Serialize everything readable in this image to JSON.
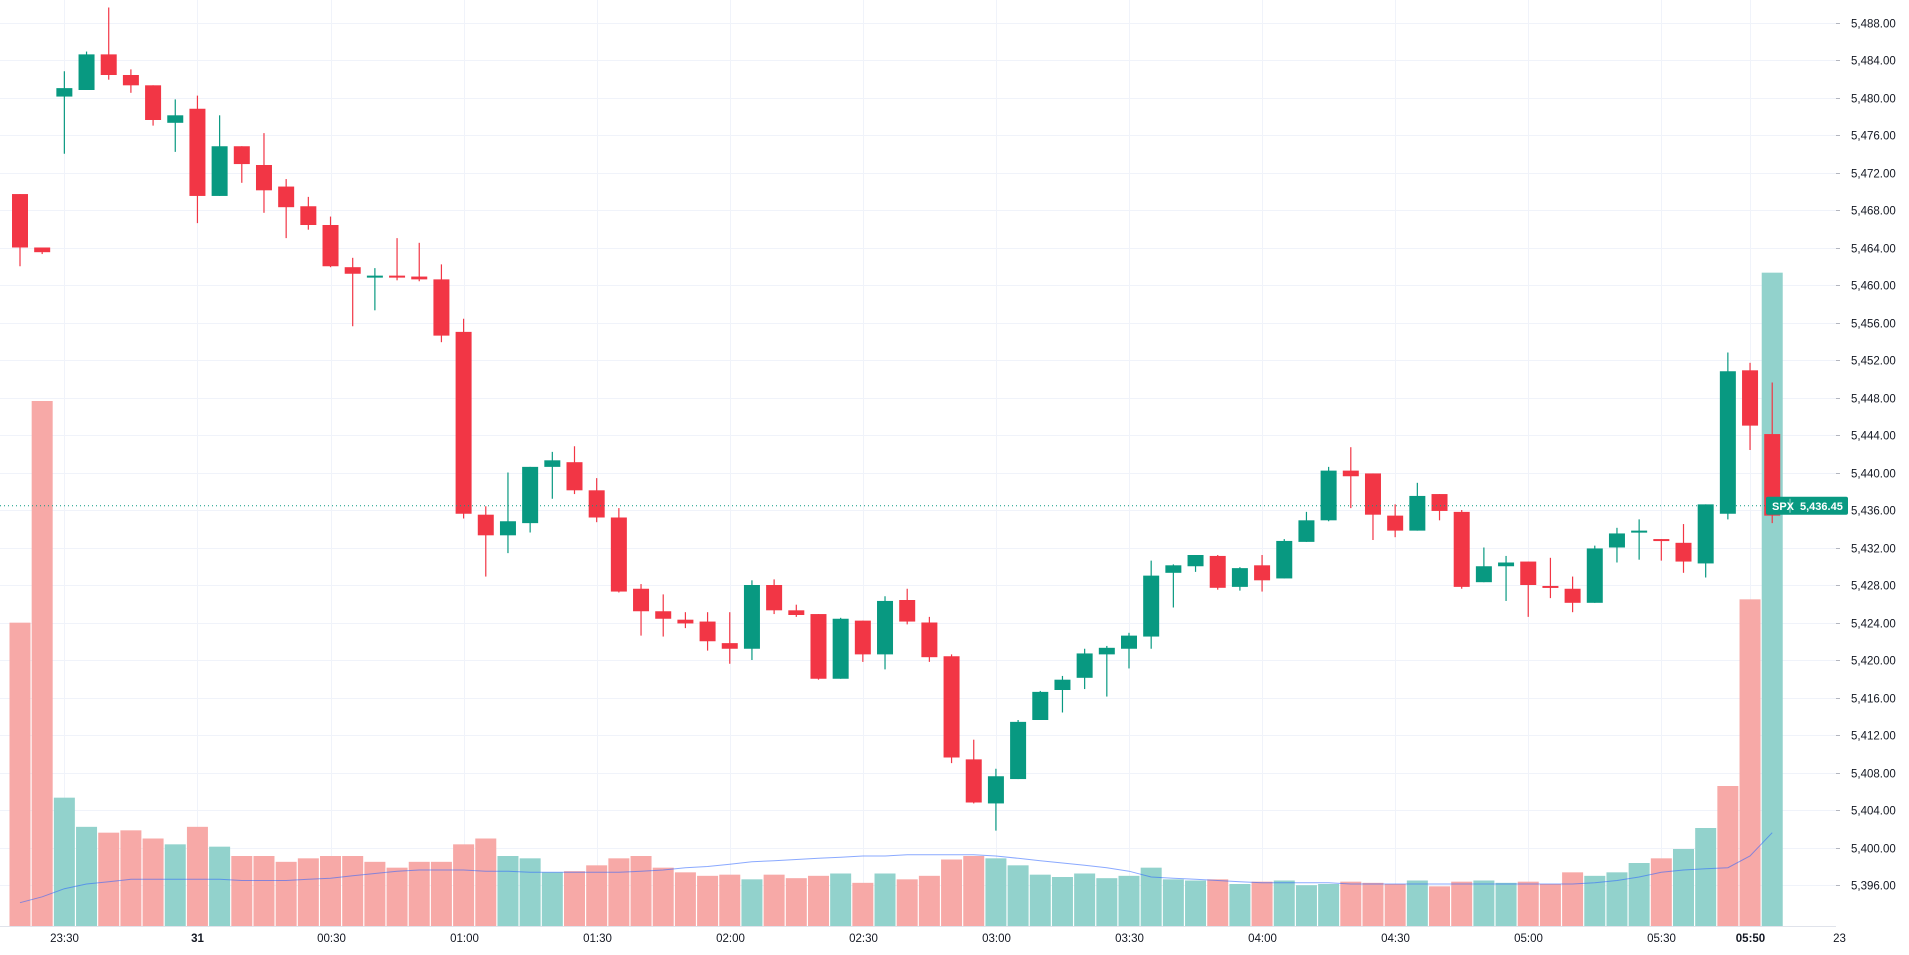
{
  "chart_data": {
    "type": "candlestick",
    "symbol": "SPX",
    "last_price": 5436.45,
    "last_price_label": "5,436.45",
    "colors": {
      "up": "#089981",
      "down": "#f23645",
      "up_volume": "#92d2cc",
      "down_volume": "#f7a9a7",
      "volume_ma": "#2962ff",
      "grid": "#f0f3fa",
      "price_line": "#089981",
      "axis_text": "#131722",
      "background": "#ffffff"
    },
    "y_range": [
      5393,
      5490
    ],
    "y_ticks": [
      5396,
      5400,
      5404,
      5408,
      5412,
      5416,
      5420,
      5424,
      5428,
      5432,
      5436,
      5440,
      5444,
      5448,
      5452,
      5456,
      5460,
      5464,
      5468,
      5472,
      5476,
      5480,
      5484,
      5488
    ],
    "y_tick_labels": [
      "5,396.00",
      "5,400.00",
      "5,404.00",
      "5,408.00",
      "5,412.00",
      "5,416.00",
      "5,420.00",
      "5,424.00",
      "5,428.00",
      "5,432.00",
      "5,436.00",
      "5,440.00",
      "5,444.00",
      "5,448.00",
      "5,452.00",
      "5,456.00",
      "5,460.00",
      "5,464.00",
      "5,468.00",
      "5,472.00",
      "5,476.00",
      "5,480.00",
      "5,484.00",
      "5,488.00"
    ],
    "x_ticks": [
      {
        "index": 2,
        "label": "23:30",
        "bold": false
      },
      {
        "index": 8,
        "label": "31",
        "bold": true
      },
      {
        "index": 14,
        "label": "00:30",
        "bold": false
      },
      {
        "index": 20,
        "label": "01:00",
        "bold": false
      },
      {
        "index": 26,
        "label": "01:30",
        "bold": false
      },
      {
        "index": 32,
        "label": "02:00",
        "bold": false
      },
      {
        "index": 38,
        "label": "02:30",
        "bold": false
      },
      {
        "index": 44,
        "label": "03:00",
        "bold": false
      },
      {
        "index": 50,
        "label": "03:30",
        "bold": false
      },
      {
        "index": 56,
        "label": "04:00",
        "bold": false
      },
      {
        "index": 62,
        "label": "04:30",
        "bold": false
      },
      {
        "index": 68,
        "label": "05:00",
        "bold": false
      },
      {
        "index": 74,
        "label": "05:30",
        "bold": false
      },
      {
        "index": 78,
        "label": "05:50",
        "bold": true
      },
      {
        "index": 82,
        "label": "23",
        "bold": false
      }
    ],
    "bar_count": 83,
    "candles": [
      {
        "o": 5469.7,
        "h": 5469.7,
        "l": 5462.0,
        "c": 5464.0
      },
      {
        "o": 5464.0,
        "h": 5464.0,
        "l": 5463.3,
        "c": 5463.5
      },
      {
        "o": 5480.1,
        "h": 5482.8,
        "l": 5474.0,
        "c": 5481.0
      },
      {
        "o": 5480.8,
        "h": 5484.9,
        "l": 5480.8,
        "c": 5484.6
      },
      {
        "o": 5484.6,
        "h": 5489.6,
        "l": 5481.9,
        "c": 5482.4
      },
      {
        "o": 5482.4,
        "h": 5483.0,
        "l": 5480.5,
        "c": 5481.3
      },
      {
        "o": 5481.3,
        "h": 5481.3,
        "l": 5477.0,
        "c": 5477.6
      },
      {
        "o": 5477.3,
        "h": 5479.8,
        "l": 5474.2,
        "c": 5478.1
      },
      {
        "o": 5478.8,
        "h": 5480.2,
        "l": 5466.6,
        "c": 5469.5
      },
      {
        "o": 5469.5,
        "h": 5478.1,
        "l": 5469.5,
        "c": 5474.8
      },
      {
        "o": 5474.8,
        "h": 5474.8,
        "l": 5470.9,
        "c": 5472.9
      },
      {
        "o": 5472.8,
        "h": 5476.2,
        "l": 5467.7,
        "c": 5470.1
      },
      {
        "o": 5470.5,
        "h": 5471.3,
        "l": 5465.0,
        "c": 5468.3
      },
      {
        "o": 5468.4,
        "h": 5469.4,
        "l": 5465.9,
        "c": 5466.4
      },
      {
        "o": 5466.4,
        "h": 5467.3,
        "l": 5461.9,
        "c": 5462.0
      },
      {
        "o": 5461.9,
        "h": 5462.9,
        "l": 5455.6,
        "c": 5461.2
      },
      {
        "o": 5461.0,
        "h": 5461.8,
        "l": 5457.3,
        "c": 5461.0
      },
      {
        "o": 5461.0,
        "h": 5465.0,
        "l": 5460.5,
        "c": 5460.8
      },
      {
        "o": 5460.9,
        "h": 5464.5,
        "l": 5460.4,
        "c": 5460.6
      },
      {
        "o": 5460.6,
        "h": 5462.2,
        "l": 5453.9,
        "c": 5454.6
      },
      {
        "o": 5455.0,
        "h": 5456.4,
        "l": 5435.1,
        "c": 5435.6
      },
      {
        "o": 5435.5,
        "h": 5436.4,
        "l": 5428.9,
        "c": 5433.3
      },
      {
        "o": 5433.3,
        "h": 5440.0,
        "l": 5431.4,
        "c": 5434.8
      },
      {
        "o": 5434.6,
        "h": 5440.6,
        "l": 5433.6,
        "c": 5440.6
      },
      {
        "o": 5440.6,
        "h": 5442.2,
        "l": 5437.2,
        "c": 5441.3
      },
      {
        "o": 5441.1,
        "h": 5442.8,
        "l": 5437.7,
        "c": 5438.1
      },
      {
        "o": 5438.1,
        "h": 5439.4,
        "l": 5434.7,
        "c": 5435.2
      },
      {
        "o": 5435.2,
        "h": 5436.2,
        "l": 5427.2,
        "c": 5427.3
      },
      {
        "o": 5427.6,
        "h": 5428.1,
        "l": 5422.6,
        "c": 5425.2
      },
      {
        "o": 5425.2,
        "h": 5427.0,
        "l": 5422.5,
        "c": 5424.4
      },
      {
        "o": 5424.3,
        "h": 5425.1,
        "l": 5423.4,
        "c": 5423.9
      },
      {
        "o": 5424.1,
        "h": 5425.1,
        "l": 5421.0,
        "c": 5422.0
      },
      {
        "o": 5421.8,
        "h": 5425.1,
        "l": 5419.6,
        "c": 5421.2
      },
      {
        "o": 5421.2,
        "h": 5428.5,
        "l": 5420.0,
        "c": 5428.0
      },
      {
        "o": 5428.0,
        "h": 5428.6,
        "l": 5424.9,
        "c": 5425.3
      },
      {
        "o": 5425.3,
        "h": 5425.9,
        "l": 5424.6,
        "c": 5424.8
      },
      {
        "o": 5424.9,
        "h": 5424.9,
        "l": 5417.9,
        "c": 5418.0
      },
      {
        "o": 5418.0,
        "h": 5424.5,
        "l": 5418.0,
        "c": 5424.4
      },
      {
        "o": 5424.2,
        "h": 5424.2,
        "l": 5419.8,
        "c": 5420.6
      },
      {
        "o": 5420.6,
        "h": 5426.8,
        "l": 5419.0,
        "c": 5426.3
      },
      {
        "o": 5426.4,
        "h": 5427.6,
        "l": 5423.8,
        "c": 5424.1
      },
      {
        "o": 5424.0,
        "h": 5424.6,
        "l": 5419.8,
        "c": 5420.3
      },
      {
        "o": 5420.4,
        "h": 5420.6,
        "l": 5409.0,
        "c": 5409.6
      },
      {
        "o": 5409.4,
        "h": 5411.5,
        "l": 5404.7,
        "c": 5404.8
      },
      {
        "o": 5404.7,
        "h": 5408.4,
        "l": 5401.8,
        "c": 5407.6
      },
      {
        "o": 5407.3,
        "h": 5413.6,
        "l": 5407.3,
        "c": 5413.4
      },
      {
        "o": 5413.6,
        "h": 5416.7,
        "l": 5413.6,
        "c": 5416.6
      },
      {
        "o": 5416.8,
        "h": 5418.3,
        "l": 5414.4,
        "c": 5417.9
      },
      {
        "o": 5418.1,
        "h": 5421.2,
        "l": 5416.9,
        "c": 5420.7
      },
      {
        "o": 5420.6,
        "h": 5421.5,
        "l": 5416.1,
        "c": 5421.3
      },
      {
        "o": 5421.2,
        "h": 5422.9,
        "l": 5419.1,
        "c": 5422.6
      },
      {
        "o": 5422.5,
        "h": 5430.6,
        "l": 5421.2,
        "c": 5429.0
      },
      {
        "o": 5429.3,
        "h": 5430.2,
        "l": 5425.6,
        "c": 5430.1
      },
      {
        "o": 5430.0,
        "h": 5431.2,
        "l": 5429.4,
        "c": 5431.2
      },
      {
        "o": 5431.1,
        "h": 5431.2,
        "l": 5427.5,
        "c": 5427.7
      },
      {
        "o": 5427.8,
        "h": 5429.9,
        "l": 5427.4,
        "c": 5429.8
      },
      {
        "o": 5430.1,
        "h": 5431.2,
        "l": 5427.3,
        "c": 5428.5
      },
      {
        "o": 5428.7,
        "h": 5432.9,
        "l": 5428.7,
        "c": 5432.7
      },
      {
        "o": 5432.6,
        "h": 5435.8,
        "l": 5432.6,
        "c": 5434.9
      },
      {
        "o": 5434.9,
        "h": 5440.6,
        "l": 5434.8,
        "c": 5440.2
      },
      {
        "o": 5440.2,
        "h": 5442.7,
        "l": 5436.2,
        "c": 5439.6
      },
      {
        "o": 5439.9,
        "h": 5439.9,
        "l": 5432.8,
        "c": 5435.5
      },
      {
        "o": 5435.4,
        "h": 5436.6,
        "l": 5433.1,
        "c": 5433.8
      },
      {
        "o": 5433.8,
        "h": 5438.9,
        "l": 5433.8,
        "c": 5437.5
      },
      {
        "o": 5437.7,
        "h": 5437.7,
        "l": 5434.9,
        "c": 5435.9
      },
      {
        "o": 5435.8,
        "h": 5436.0,
        "l": 5427.6,
        "c": 5427.8
      },
      {
        "o": 5428.3,
        "h": 5432.0,
        "l": 5428.3,
        "c": 5430.0
      },
      {
        "o": 5430.0,
        "h": 5431.1,
        "l": 5426.3,
        "c": 5430.4
      },
      {
        "o": 5430.5,
        "h": 5430.5,
        "l": 5424.6,
        "c": 5428.0
      },
      {
        "o": 5427.9,
        "h": 5430.9,
        "l": 5426.6,
        "c": 5427.8
      },
      {
        "o": 5427.6,
        "h": 5428.9,
        "l": 5425.1,
        "c": 5426.1
      },
      {
        "o": 5426.1,
        "h": 5432.2,
        "l": 5426.1,
        "c": 5431.9
      },
      {
        "o": 5432.0,
        "h": 5434.1,
        "l": 5430.4,
        "c": 5433.5
      },
      {
        "o": 5433.6,
        "h": 5435.0,
        "l": 5430.7,
        "c": 5433.8
      },
      {
        "o": 5432.9,
        "h": 5432.9,
        "l": 5430.6,
        "c": 5432.8
      },
      {
        "o": 5432.5,
        "h": 5434.5,
        "l": 5429.3,
        "c": 5430.5
      },
      {
        "o": 5430.3,
        "h": 5436.6,
        "l": 5428.8,
        "c": 5436.6
      },
      {
        "o": 5435.6,
        "h": 5452.8,
        "l": 5435.0,
        "c": 5450.8
      },
      {
        "o": 5450.9,
        "h": 5451.7,
        "l": 5442.4,
        "c": 5445.0
      },
      {
        "o": 5444.1,
        "h": 5449.6,
        "l": 5434.6,
        "c": 5435.4
      }
    ],
    "volumes": [
      {
        "v": 0.26,
        "up": false
      },
      {
        "v": 0.45,
        "up": false
      },
      {
        "v": 0.11,
        "up": true
      },
      {
        "v": 0.085,
        "up": true
      },
      {
        "v": 0.08,
        "up": false
      },
      {
        "v": 0.082,
        "up": false
      },
      {
        "v": 0.075,
        "up": false
      },
      {
        "v": 0.07,
        "up": true
      },
      {
        "v": 0.085,
        "up": false
      },
      {
        "v": 0.068,
        "up": true
      },
      {
        "v": 0.06,
        "up": false
      },
      {
        "v": 0.06,
        "up": false
      },
      {
        "v": 0.055,
        "up": false
      },
      {
        "v": 0.058,
        "up": false
      },
      {
        "v": 0.06,
        "up": false
      },
      {
        "v": 0.06,
        "up": false
      },
      {
        "v": 0.055,
        "up": false
      },
      {
        "v": 0.05,
        "up": false
      },
      {
        "v": 0.055,
        "up": false
      },
      {
        "v": 0.055,
        "up": false
      },
      {
        "v": 0.07,
        "up": false
      },
      {
        "v": 0.075,
        "up": false
      },
      {
        "v": 0.06,
        "up": true
      },
      {
        "v": 0.058,
        "up": true
      },
      {
        "v": 0.046,
        "up": true
      },
      {
        "v": 0.047,
        "up": false
      },
      {
        "v": 0.052,
        "up": false
      },
      {
        "v": 0.058,
        "up": false
      },
      {
        "v": 0.06,
        "up": false
      },
      {
        "v": 0.05,
        "up": false
      },
      {
        "v": 0.046,
        "up": false
      },
      {
        "v": 0.043,
        "up": false
      },
      {
        "v": 0.044,
        "up": false
      },
      {
        "v": 0.04,
        "up": true
      },
      {
        "v": 0.044,
        "up": false
      },
      {
        "v": 0.041,
        "up": false
      },
      {
        "v": 0.043,
        "up": false
      },
      {
        "v": 0.045,
        "up": true
      },
      {
        "v": 0.037,
        "up": false
      },
      {
        "v": 0.045,
        "up": true
      },
      {
        "v": 0.04,
        "up": false
      },
      {
        "v": 0.043,
        "up": false
      },
      {
        "v": 0.057,
        "up": false
      },
      {
        "v": 0.06,
        "up": false
      },
      {
        "v": 0.058,
        "up": true
      },
      {
        "v": 0.052,
        "up": true
      },
      {
        "v": 0.044,
        "up": true
      },
      {
        "v": 0.042,
        "up": true
      },
      {
        "v": 0.045,
        "up": true
      },
      {
        "v": 0.041,
        "up": true
      },
      {
        "v": 0.043,
        "up": true
      },
      {
        "v": 0.05,
        "up": true
      },
      {
        "v": 0.04,
        "up": true
      },
      {
        "v": 0.039,
        "up": true
      },
      {
        "v": 0.04,
        "up": false
      },
      {
        "v": 0.036,
        "up": true
      },
      {
        "v": 0.038,
        "up": false
      },
      {
        "v": 0.039,
        "up": true
      },
      {
        "v": 0.035,
        "up": true
      },
      {
        "v": 0.036,
        "up": true
      },
      {
        "v": 0.038,
        "up": false
      },
      {
        "v": 0.037,
        "up": false
      },
      {
        "v": 0.036,
        "up": false
      },
      {
        "v": 0.039,
        "up": true
      },
      {
        "v": 0.034,
        "up": false
      },
      {
        "v": 0.038,
        "up": false
      },
      {
        "v": 0.039,
        "up": true
      },
      {
        "v": 0.037,
        "up": true
      },
      {
        "v": 0.038,
        "up": false
      },
      {
        "v": 0.036,
        "up": false
      },
      {
        "v": 0.046,
        "up": false
      },
      {
        "v": 0.043,
        "up": true
      },
      {
        "v": 0.046,
        "up": true
      },
      {
        "v": 0.054,
        "up": true
      },
      {
        "v": 0.058,
        "up": false
      },
      {
        "v": 0.066,
        "up": true
      },
      {
        "v": 0.084,
        "up": true
      },
      {
        "v": 0.12,
        "up": false
      },
      {
        "v": 0.28,
        "up": false
      },
      {
        "v": 0.56,
        "up": true
      }
    ],
    "volume_ma": [
      0.02,
      0.025,
      0.032,
      0.036,
      0.038,
      0.04,
      0.04,
      0.04,
      0.04,
      0.04,
      0.039,
      0.039,
      0.039,
      0.04,
      0.041,
      0.043,
      0.045,
      0.047,
      0.048,
      0.048,
      0.048,
      0.047,
      0.047,
      0.046,
      0.046,
      0.046,
      0.046,
      0.046,
      0.047,
      0.048,
      0.05,
      0.051,
      0.053,
      0.055,
      0.056,
      0.057,
      0.058,
      0.059,
      0.06,
      0.06,
      0.061,
      0.061,
      0.061,
      0.061,
      0.06,
      0.058,
      0.056,
      0.054,
      0.052,
      0.05,
      0.047,
      0.042,
      0.041,
      0.04,
      0.039,
      0.038,
      0.037,
      0.037,
      0.037,
      0.037,
      0.036,
      0.036,
      0.036,
      0.036,
      0.036,
      0.036,
      0.036,
      0.036,
      0.036,
      0.036,
      0.036,
      0.037,
      0.039,
      0.042,
      0.046,
      0.048,
      0.049,
      0.05,
      0.06,
      0.08
    ],
    "volume_scale_max": 0.6
  }
}
